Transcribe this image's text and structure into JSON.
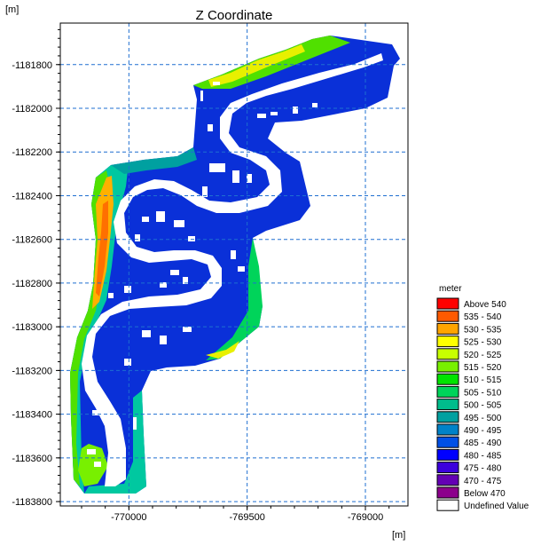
{
  "chart_data": {
    "type": "heatmap",
    "title": "Z Coordinate",
    "x_unit": "[m]",
    "y_unit": "[m]",
    "xlim": [
      -770290,
      -768820
    ],
    "ylim": [
      -1183820,
      -1181610
    ],
    "x_ticks": [
      -770000,
      -769500,
      -769000
    ],
    "y_ticks": [
      -1181800,
      -1182000,
      -1182200,
      -1182400,
      -1182600,
      -1182800,
      -1183000,
      -1183200,
      -1183400,
      -1183600,
      -1183800
    ],
    "x_tick_labels": [
      "-770000",
      "-769500",
      "-769000"
    ],
    "y_tick_labels": [
      "-1181800",
      "-1182000",
      "-1182200",
      "-1182400",
      "-1182600",
      "-1182800",
      "-1183000",
      "-1183200",
      "-1183400",
      "-1183600",
      "-1183800"
    ],
    "grid": true,
    "legend": {
      "title": "meter",
      "position": "right",
      "entries": [
        {
          "label": "Above 540",
          "color": "#ff0000"
        },
        {
          "label": "535 - 540",
          "color": "#ff5a00"
        },
        {
          "label": "530 - 535",
          "color": "#ffa500"
        },
        {
          "label": "525 - 530",
          "color": "#ffff00"
        },
        {
          "label": "520 - 525",
          "color": "#c8ff00"
        },
        {
          "label": "515 - 520",
          "color": "#78f000"
        },
        {
          "label": "510 - 515",
          "color": "#00e400"
        },
        {
          "label": "505 - 510",
          "color": "#00d45a"
        },
        {
          "label": "500 - 505",
          "color": "#00bd8c"
        },
        {
          "label": "495 - 500",
          "color": "#00a0a0"
        },
        {
          "label": "490 - 495",
          "color": "#0082c8"
        },
        {
          "label": "485 - 490",
          "color": "#0050e6"
        },
        {
          "label": "480 - 485",
          "color": "#0000ff"
        },
        {
          "label": "475 - 480",
          "color": "#3c00dc"
        },
        {
          "label": "470 - 475",
          "color": "#6400b4"
        },
        {
          "label": "Below 470",
          "color": "#8c008c"
        },
        {
          "label": "Undefined Value",
          "color": "#ffffff"
        }
      ]
    }
  }
}
